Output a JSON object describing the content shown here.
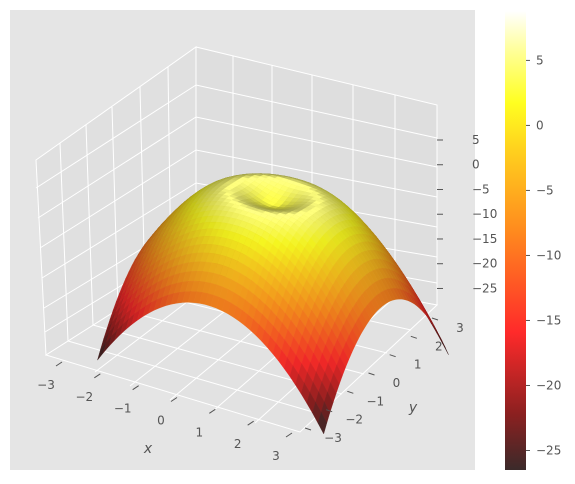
{
  "chart_data": {
    "type": "surface3d",
    "function": "z = -(x^2 + y^2) + 10*cos(sqrt(x^2+y^2))/... (dome with central dimple)",
    "xlabel": "x",
    "ylabel": "y",
    "zlabel": "",
    "x_ticks": [
      "−3",
      "−2",
      "−1",
      "0",
      "1",
      "2",
      "3"
    ],
    "y_ticks": [
      "−3",
      "−2",
      "−1",
      "0",
      "1",
      "2",
      "3"
    ],
    "z_ticks": [
      "5",
      "0",
      "−5",
      "−10",
      "−15",
      "−20",
      "−25"
    ],
    "xlim": [
      -3,
      3
    ],
    "ylim": [
      -3,
      3
    ],
    "zlim": [
      -26.5,
      8.8
    ],
    "samples": {
      "corners": [
        [
          -3,
          -3,
          -26.5
        ],
        [
          3,
          -3,
          -26.5
        ],
        [
          -3,
          3,
          -26.5
        ],
        [
          3,
          3,
          -26.5
        ]
      ],
      "edge_midpoints": [
        [
          0,
          -3,
          -8
        ],
        [
          0,
          3,
          -8
        ],
        [
          -3,
          0,
          -8
        ],
        [
          3,
          0,
          -8
        ]
      ],
      "center": [
        0,
        0,
        8.8
      ]
    },
    "colormap": "hot",
    "colorbar": {
      "ticks": [
        "5",
        "0",
        "−5",
        "−10",
        "−15",
        "−20",
        "−25"
      ],
      "values": [
        5,
        0,
        -5,
        -10,
        -15,
        -20,
        -25
      ],
      "min": -26.5,
      "max": 8.8
    },
    "style": "ggplot",
    "grid": true
  }
}
